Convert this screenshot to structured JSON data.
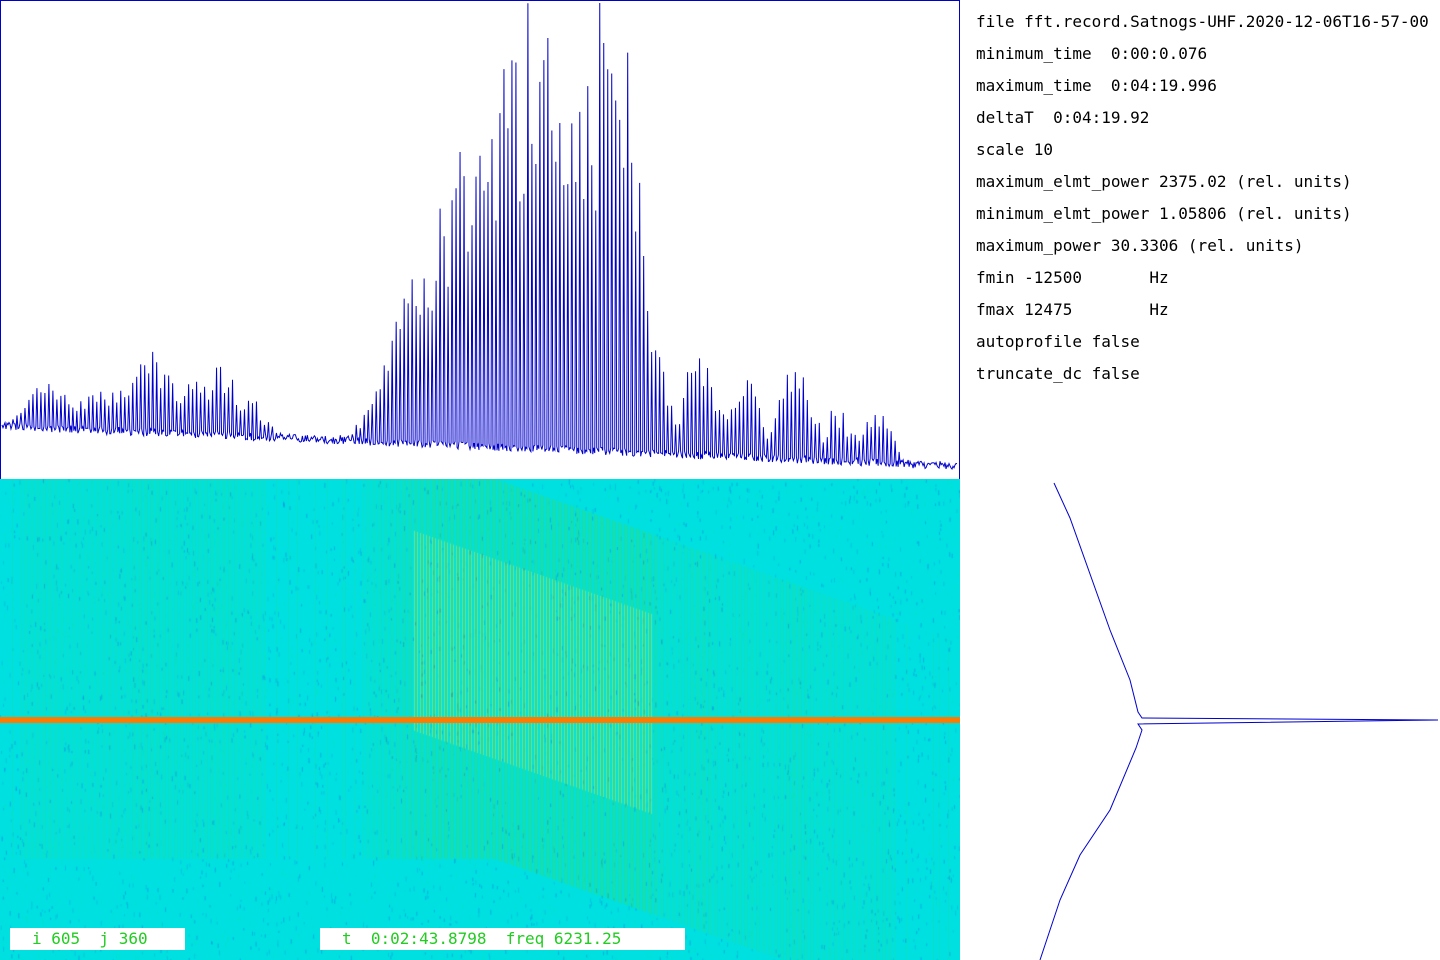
{
  "colors": {
    "trace": "#0000cc",
    "waterfall_bg": "#00e0e0",
    "cursor_line": "#ff7a00",
    "status_text": "#22cc22"
  },
  "info": {
    "file": "file fft.record.Satnogs-UHF.2020-12-06T16-57-00",
    "minimum_time": "minimum_time  0:00:0.076",
    "maximum_time": "maximum_time  0:04:19.996",
    "deltaT": "deltaT  0:04:19.92",
    "scale": "scale 10",
    "maximum_elmt_power": "maximum_elmt_power 2375.02 (rel. units)",
    "minimum_elmt_power": "minimum_elmt_power 1.05806 (rel. units)",
    "maximum_power": "maximum_power 30.3306 (rel. units)",
    "fmin": "fmin -12500       Hz",
    "fmax": "fmax 12475        Hz",
    "autoprofile": "autoprofile false",
    "truncate_dc": "truncate_dc false"
  },
  "status": {
    "indices": "i 605  j 360",
    "cursor": "t  0:02:43.8798  freq 6231.25"
  }
}
